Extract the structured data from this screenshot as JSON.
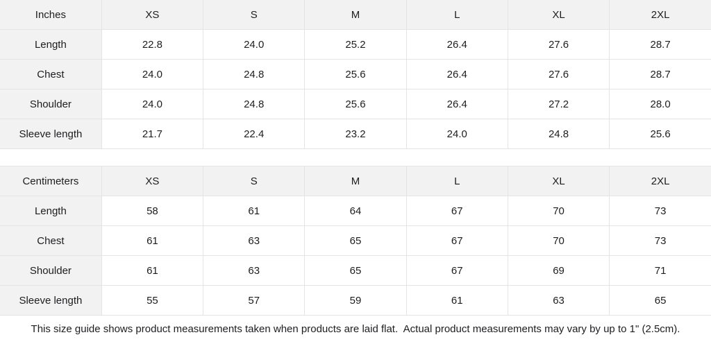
{
  "colors": {
    "header_bg": "#f2f2f2",
    "cell_bg": "#ffffff",
    "border": "#e4e4e4",
    "text": "#1d1d1f"
  },
  "tables": [
    {
      "unit_label": "Inches",
      "sizes": [
        "XS",
        "S",
        "M",
        "L",
        "XL",
        "2XL"
      ],
      "rows": [
        {
          "label": "Length",
          "values": [
            "22.8",
            "24.0",
            "25.2",
            "26.4",
            "27.6",
            "28.7"
          ]
        },
        {
          "label": "Chest",
          "values": [
            "24.0",
            "24.8",
            "25.6",
            "26.4",
            "27.6",
            "28.7"
          ]
        },
        {
          "label": "Shoulder",
          "values": [
            "24.0",
            "24.8",
            "25.6",
            "26.4",
            "27.2",
            "28.0"
          ]
        },
        {
          "label": "Sleeve length",
          "values": [
            "21.7",
            "22.4",
            "23.2",
            "24.0",
            "24.8",
            "25.6"
          ]
        }
      ]
    },
    {
      "unit_label": "Centimeters",
      "sizes": [
        "XS",
        "S",
        "M",
        "L",
        "XL",
        "2XL"
      ],
      "rows": [
        {
          "label": "Length",
          "values": [
            "58",
            "61",
            "64",
            "67",
            "70",
            "73"
          ]
        },
        {
          "label": "Chest",
          "values": [
            "61",
            "63",
            "65",
            "67",
            "70",
            "73"
          ]
        },
        {
          "label": "Shoulder",
          "values": [
            "61",
            "63",
            "65",
            "67",
            "69",
            "71"
          ]
        },
        {
          "label": "Sleeve length",
          "values": [
            "55",
            "57",
            "59",
            "61",
            "63",
            "65"
          ]
        }
      ]
    }
  ],
  "footer": {
    "note": "This size guide shows product measurements taken when products are laid flat.  Actual product measurements may vary by up to 1\" (2.5cm)."
  }
}
